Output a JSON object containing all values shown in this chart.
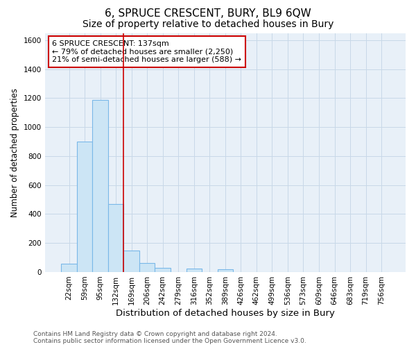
{
  "title": "6, SPRUCE CRESCENT, BURY, BL9 6QW",
  "subtitle": "Size of property relative to detached houses in Bury",
  "xlabel": "Distribution of detached houses by size in Bury",
  "ylabel": "Number of detached properties",
  "bar_labels": [
    "22sqm",
    "59sqm",
    "95sqm",
    "132sqm",
    "169sqm",
    "206sqm",
    "242sqm",
    "279sqm",
    "316sqm",
    "352sqm",
    "389sqm",
    "426sqm",
    "462sqm",
    "499sqm",
    "536sqm",
    "573sqm",
    "609sqm",
    "646sqm",
    "683sqm",
    "719sqm",
    "756sqm"
  ],
  "bar_values": [
    55,
    900,
    1190,
    470,
    150,
    62,
    30,
    0,
    25,
    0,
    20,
    0,
    0,
    0,
    0,
    0,
    0,
    0,
    0,
    0,
    0
  ],
  "bar_color": "#cce5f5",
  "bar_edgecolor": "#7ab8e8",
  "bar_linewidth": 0.8,
  "vline_x": 3.5,
  "vline_color": "#cc0000",
  "vline_linewidth": 1.2,
  "annotation_line1": "6 SPRUCE CRESCENT: 137sqm",
  "annotation_line2": "← 79% of detached houses are smaller (2,250)",
  "annotation_line3": "21% of semi-detached houses are larger (588) →",
  "annotation_box_color": "white",
  "annotation_box_edgecolor": "#cc0000",
  "ylim": [
    0,
    1650
  ],
  "yticks": [
    0,
    200,
    400,
    600,
    800,
    1000,
    1200,
    1400,
    1600
  ],
  "grid_color": "#c8d8e8",
  "background_color": "#e8f0f8",
  "footer1": "Contains HM Land Registry data © Crown copyright and database right 2024.",
  "footer2": "Contains public sector information licensed under the Open Government Licence v3.0.",
  "title_fontsize": 11,
  "subtitle_fontsize": 10,
  "xlabel_fontsize": 9.5,
  "ylabel_fontsize": 8.5,
  "tick_fontsize": 7.5,
  "annotation_fontsize": 8,
  "footer_fontsize": 6.5
}
